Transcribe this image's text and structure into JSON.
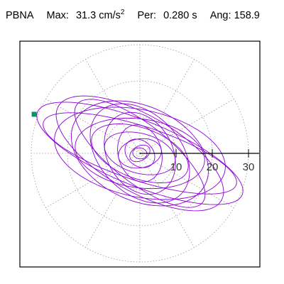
{
  "header": {
    "station": "PBNA",
    "max_label": "Max:",
    "max_value": "31.3",
    "max_unit": "cm/s",
    "max_unit_exp": "2",
    "per_label": "Per:",
    "per_value": "0.280 s",
    "ang_label": "Ang:",
    "ang_value": "158.9"
  },
  "chart_data": {
    "type": "scatter",
    "subtype": "polar-particle-motion",
    "title": "PBNA Max: 31.3 cm/s2 Per: 0.280 s Ang: 158.9",
    "max_amplitude": 31.3,
    "period_s": 0.28,
    "angle_deg": 158.9,
    "radial_ticks": [
      10,
      20,
      30
    ],
    "radial_tick_labels": [
      "10",
      "20",
      "30"
    ],
    "grid_rings": [
      10,
      20,
      30
    ],
    "grid_spokes_every_deg": 30,
    "grid": true,
    "colors": {
      "trace": "#8a00d4",
      "marker": "#009966",
      "grid": "#9a9a9a"
    },
    "trace_ellipses": [
      {
        "a": 30.5,
        "b": 9.0,
        "rot": -22
      },
      {
        "a": 28.0,
        "b": 7.5,
        "rot": -18
      },
      {
        "a": 26.0,
        "b": 10.5,
        "rot": -30
      },
      {
        "a": 24.0,
        "b": 12.0,
        "rot": -12
      },
      {
        "a": 22.0,
        "b": 8.0,
        "rot": -38
      },
      {
        "a": 20.0,
        "b": 13.0,
        "rot": -25
      },
      {
        "a": 18.0,
        "b": 9.5,
        "rot": -8
      },
      {
        "a": 16.0,
        "b": 11.0,
        "rot": -45
      },
      {
        "a": 14.0,
        "b": 7.0,
        "rot": -20
      },
      {
        "a": 12.0,
        "b": 9.0,
        "rot": -60
      },
      {
        "a": 10.0,
        "b": 5.5,
        "rot": -15
      },
      {
        "a": 8.0,
        "b": 6.0,
        "rot": -75
      },
      {
        "a": 6.0,
        "b": 4.0,
        "rot": 10
      },
      {
        "a": 4.5,
        "b": 3.5,
        "rot": -40
      },
      {
        "a": 3.0,
        "b": 2.0,
        "rot": 30
      },
      {
        "a": 2.0,
        "b": 1.5,
        "rot": -10
      }
    ],
    "end_marker": {
      "x": -29.2,
      "y": 10.8
    }
  }
}
